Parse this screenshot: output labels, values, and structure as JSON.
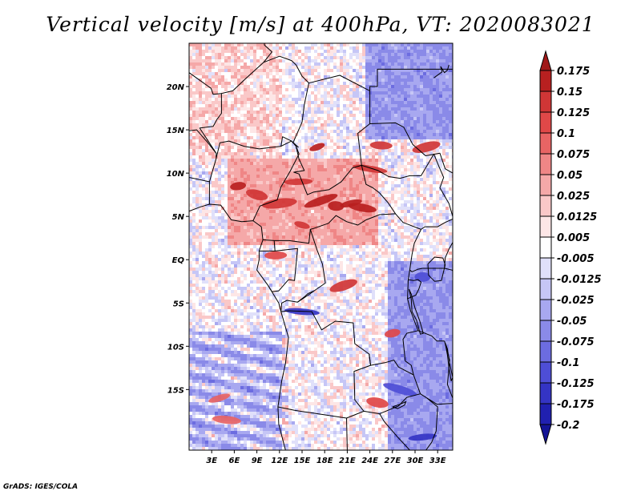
{
  "title": "Vertical velocity [m/s] at 400hPa, VT: 2020083021",
  "credit": "GrADS: IGES/COLA",
  "map": {
    "lat_range": [
      -22,
      25
    ],
    "lon_range": [
      0,
      35
    ],
    "lat_ticks": [
      {
        "value": 20,
        "label": "20N"
      },
      {
        "value": 15,
        "label": "15N"
      },
      {
        "value": 10,
        "label": "10N"
      },
      {
        "value": 5,
        "label": "5N"
      },
      {
        "value": 0,
        "label": "EQ"
      },
      {
        "value": -5,
        "label": "5S"
      },
      {
        "value": -10,
        "label": "10S"
      },
      {
        "value": -15,
        "label": "15S"
      }
    ],
    "lon_ticks": [
      {
        "value": 3,
        "label": "3E"
      },
      {
        "value": 6,
        "label": "6E"
      },
      {
        "value": 9,
        "label": "9E"
      },
      {
        "value": 12,
        "label": "12E"
      },
      {
        "value": 15,
        "label": "15E"
      },
      {
        "value": 18,
        "label": "18E"
      },
      {
        "value": 21,
        "label": "21E"
      },
      {
        "value": 24,
        "label": "24E"
      },
      {
        "value": 27,
        "label": "27E"
      },
      {
        "value": 30,
        "label": "30E"
      },
      {
        "value": 33,
        "label": "33E"
      }
    ],
    "hotspots": [
      {
        "lon": 17.0,
        "lat": 13.0,
        "value": 0.175
      },
      {
        "lon": 25.5,
        "lat": 13.2,
        "value": 0.15
      },
      {
        "lon": 31.5,
        "lat": 13.0,
        "value": 0.15
      },
      {
        "lon": 24.0,
        "lat": 10.5,
        "value": 0.15
      },
      {
        "lon": 6.5,
        "lat": 8.5,
        "value": 0.175
      },
      {
        "lon": 9.0,
        "lat": 7.5,
        "value": 0.15
      },
      {
        "lon": 14.5,
        "lat": 9.0,
        "value": 0.15
      },
      {
        "lon": 17.5,
        "lat": 6.8,
        "value": 0.175
      },
      {
        "lon": 19.5,
        "lat": 6.2,
        "value": 0.175
      },
      {
        "lon": 21.5,
        "lat": 6.5,
        "value": 0.175
      },
      {
        "lon": 23.0,
        "lat": 6.0,
        "value": 0.175
      },
      {
        "lon": 12.0,
        "lat": 6.5,
        "value": 0.15
      },
      {
        "lon": 15.0,
        "lat": 4.0,
        "value": 0.15
      },
      {
        "lon": 11.5,
        "lat": 0.5,
        "value": 0.125
      },
      {
        "lon": 20.5,
        "lat": -3.0,
        "value": 0.15
      },
      {
        "lon": 15.0,
        "lat": -6.0,
        "value": -0.125
      },
      {
        "lon": 27.0,
        "lat": -8.5,
        "value": 0.125
      },
      {
        "lon": 25.0,
        "lat": -16.5,
        "value": 0.125
      },
      {
        "lon": 31.0,
        "lat": -20.5,
        "value": -0.15
      },
      {
        "lon": 28.0,
        "lat": -15.0,
        "value": -0.1
      },
      {
        "lon": 31.0,
        "lat": -2.0,
        "value": -0.1
      },
      {
        "lon": 4.0,
        "lat": -16.0,
        "value": 0.1
      },
      {
        "lon": 5.0,
        "lat": -18.5,
        "value": 0.1
      }
    ]
  },
  "colorbar": {
    "levels": [
      "0.175",
      "0.15",
      "0.125",
      "0.1",
      "0.075",
      "0.05",
      "0.025",
      "0.0125",
      "0.005",
      "-0.005",
      "-0.0125",
      "-0.025",
      "-0.05",
      "-0.075",
      "-0.1",
      "-0.125",
      "-0.175",
      "-0.2"
    ],
    "colors": [
      "#a01818",
      "#b82020",
      "#d03636",
      "#e04848",
      "#e86464",
      "#ef8686",
      "#f5a8a8",
      "#fac8c8",
      "#fde6e6",
      "#ffffff",
      "#e0e0fa",
      "#c6c6f6",
      "#a8a8f0",
      "#8a8ae8",
      "#6c6ce0",
      "#4e4ed6",
      "#3434c4",
      "#2020b0",
      "#141496"
    ]
  }
}
